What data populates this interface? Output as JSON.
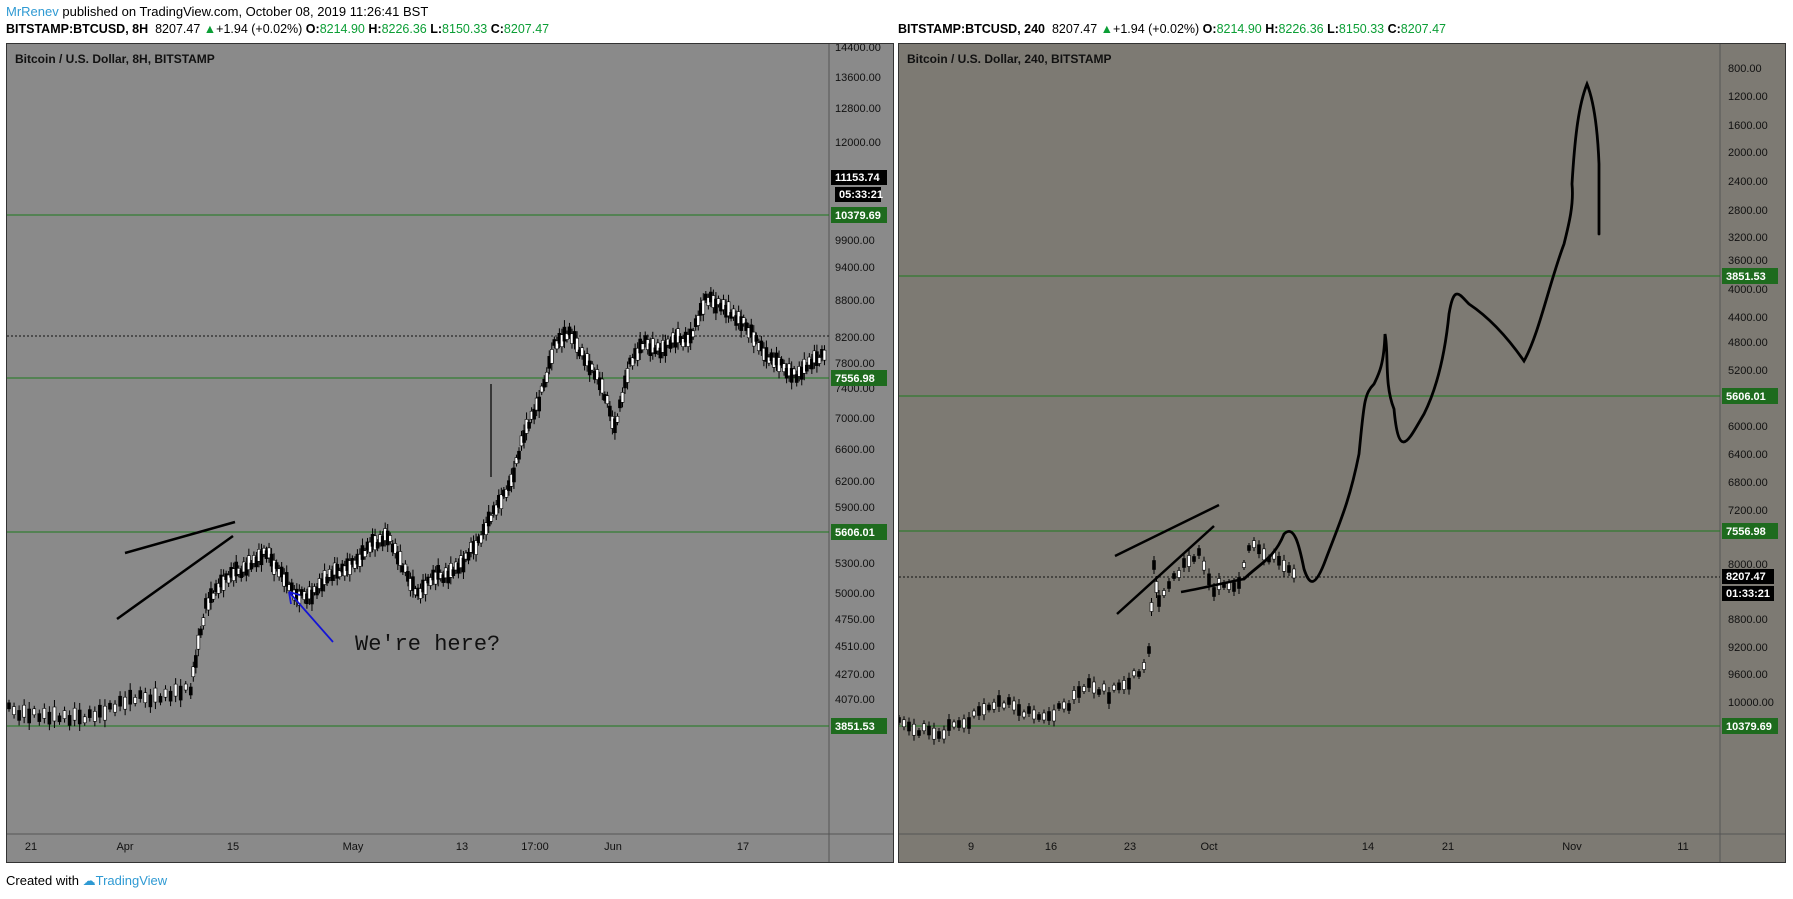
{
  "header": {
    "author": "MrRenev",
    "published": " published on TradingView.com, October 08, 2019 11:26:41 BST"
  },
  "left": {
    "symbol": "BITSTAMP:BTCUSD, 8H",
    "price": "8207.47",
    "change": "+1.94 (+0.02%)",
    "o_label": "O:",
    "o": "8214.90",
    "h_label": "H:",
    "h": "8226.36",
    "l_label": "L:",
    "l": "8150.33",
    "c_label": "C:",
    "c": "8207.47",
    "title": "Bitcoin / U.S. Dollar, 8H, BITSTAMP"
  },
  "right": {
    "symbol": "BITSTAMP:BTCUSD, 240",
    "price": "8207.47",
    "change": "+1.94 (+0.02%)",
    "o_label": "O:",
    "o": "8214.90",
    "h_label": "H:",
    "h": "8226.36",
    "l_label": "L:",
    "l": "8150.33",
    "c_label": "C:",
    "c": "8207.47",
    "title": "Bitcoin / U.S. Dollar, 240, BITSTAMP"
  },
  "footer": {
    "created": "Created with",
    "brand": "TradingView"
  },
  "colors": {
    "left_bg": "#8a8a8a",
    "right_bg": "#7d7a73",
    "level_line": "#1f7a1f",
    "tag_green": "#1e6b1e",
    "tag_black": "#000000",
    "arrow": "#1414d6",
    "candle": "#000000"
  },
  "chart_data": [
    {
      "type": "line",
      "panel": "left",
      "title": "Bitcoin / U.S. Dollar, 8H, BITSTAMP",
      "y_ticks": [
        "14400.00",
        "13600.00",
        "12800.00",
        "12000.00",
        "9900.00",
        "9400.00",
        "8800.00",
        "8200.00",
        "7800.00",
        "7400.00",
        "7000.00",
        "6600.00",
        "6200.00",
        "5900.00",
        "5300.00",
        "5000.00",
        "4750.00",
        "4510.00",
        "4270.00",
        "4070.00"
      ],
      "x_ticks": [
        "21",
        "Apr",
        "15",
        "May",
        "13",
        "17:00",
        "Jun",
        "17"
      ],
      "levels": [
        "10379.69",
        "7556.98",
        "5606.01",
        "3851.53"
      ],
      "current_price_line": "8200.00",
      "price_tags": [
        "11153.74",
        "05:33:21"
      ],
      "annotation": "We're here?",
      "series": [
        {
          "x": [
            0,
            8,
            16,
            24,
            32,
            40,
            48,
            52,
            56,
            60,
            64,
            68,
            72,
            76,
            80,
            84,
            88,
            92,
            96,
            100,
            104,
            108,
            112,
            116,
            120,
            124,
            128,
            132,
            136,
            140,
            144,
            148,
            152,
            156,
            160,
            164,
            168,
            172,
            176,
            180,
            184,
            188,
            192,
            196,
            200,
            204,
            208,
            212,
            216
          ],
          "y": [
            3980,
            3940,
            3900,
            3960,
            4060,
            4100,
            4150,
            4900,
            5100,
            5200,
            5300,
            5400,
            5200,
            4950,
            5000,
            5150,
            5250,
            5320,
            5500,
            5600,
            5250,
            5000,
            5150,
            5200,
            5300,
            5550,
            5850,
            6100,
            6800,
            7200,
            8100,
            8250,
            7900,
            7500,
            6900,
            7800,
            8100,
            8000,
            8150,
            8200,
            8800,
            8750,
            8500,
            8300,
            7900,
            7750,
            7600,
            7800,
            8000
          ]
        }
      ]
    },
    {
      "type": "line",
      "panel": "right",
      "title": "Bitcoin / U.S. Dollar, 240, BITSTAMP",
      "y_ticks": [
        "800.00",
        "1200.00",
        "1600.00",
        "2000.00",
        "2400.00",
        "2800.00",
        "3200.00",
        "3600.00",
        "4000.00",
        "4400.00",
        "4800.00",
        "5200.00",
        "6000.00",
        "6400.00",
        "6800.00",
        "7200.00",
        "8000.00",
        "8800.00",
        "9200.00",
        "9600.00",
        "10000.00",
        "10400.00"
      ],
      "x_ticks": [
        "9",
        "16",
        "23",
        "Oct",
        "14",
        "21",
        "Nov",
        "11"
      ],
      "levels": [
        "3851.53",
        "5606.01",
        "7556.98",
        "10379.69"
      ],
      "current_price_line": "8207.47",
      "price_tags": [
        "8207.47",
        "01:33:21"
      ]
    }
  ]
}
